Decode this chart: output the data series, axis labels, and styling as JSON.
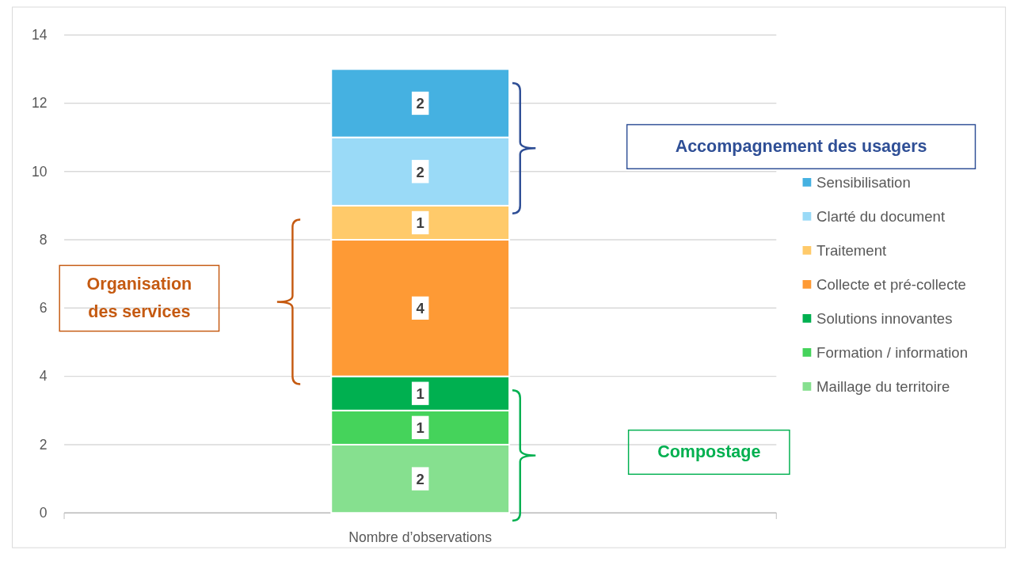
{
  "chart_data": {
    "type": "bar",
    "stacked": true,
    "categories": [
      "Nombre d’observations"
    ],
    "series": [
      {
        "name": "Maillage du territoire",
        "color": "#86e08f",
        "values": [
          2
        ]
      },
      {
        "name": "Formation / information",
        "color": "#45d35b",
        "values": [
          1
        ]
      },
      {
        "name": "Solutions innovantes",
        "color": "#00b050",
        "values": [
          1
        ]
      },
      {
        "name": "Collecte et pré-collecte",
        "color": "#fe9a35",
        "values": [
          4
        ]
      },
      {
        "name": "Traitement",
        "color": "#ffca6a",
        "values": [
          1
        ]
      },
      {
        "name": "Clarté du document",
        "color": "#9adaf7",
        "values": [
          2
        ]
      },
      {
        "name": "Sensibilisation",
        "color": "#45b1e1",
        "values": [
          2
        ]
      }
    ],
    "ylim": [
      0,
      14
    ],
    "yticks": [
      0,
      2,
      4,
      6,
      8,
      10,
      12,
      14
    ],
    "grid": "y",
    "legend": "right",
    "data_labels": true,
    "annotations": [
      "Accompagnement des usagers",
      "Organisation des services",
      "Compostage"
    ]
  }
}
